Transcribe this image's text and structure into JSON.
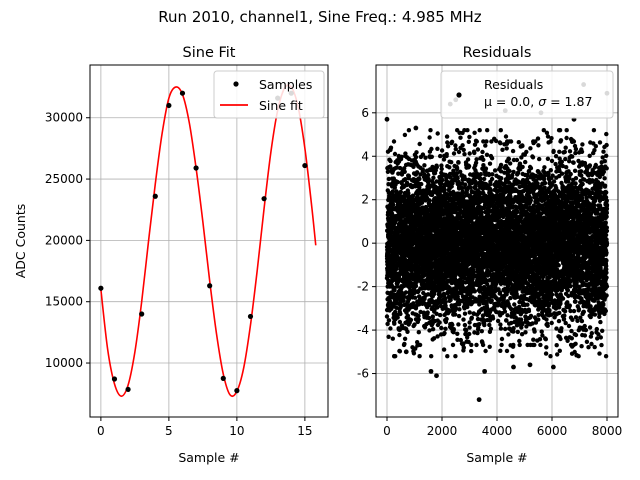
{
  "figure": {
    "suptitle": "Run 2010, channel1, Sine Freq.: 4.985 MHz"
  },
  "chart_data": [
    {
      "type": "line",
      "title": "Sine Fit",
      "xlabel": "Sample #",
      "ylabel": "ADC Counts",
      "xlim": [
        -0.8,
        16.7
      ],
      "ylim": [
        5600,
        34300
      ],
      "xticks": [
        0,
        5,
        10,
        15
      ],
      "yticks": [
        10000,
        15000,
        20000,
        25000,
        30000
      ],
      "grid": true,
      "legend_position": "upper-right",
      "series": [
        {
          "name": "Samples",
          "kind": "scatter",
          "color": "#000000",
          "x": [
            0,
            1,
            2,
            3,
            4,
            5,
            6,
            7,
            8,
            9,
            10,
            11,
            12,
            13,
            14,
            15
          ],
          "y": [
            16100,
            8700,
            7850,
            14000,
            23600,
            31000,
            32000,
            25900,
            16300,
            8750,
            7750,
            13800,
            23400,
            31600,
            32000,
            26100
          ]
        },
        {
          "name": "Sine fit",
          "kind": "line",
          "color": "#ff0000",
          "x": [
            0,
            0.5,
            1,
            1.5,
            2,
            2.5,
            3,
            3.5,
            4,
            4.5,
            5,
            5.5,
            6,
            6.5,
            7,
            7.5,
            8,
            8.5,
            9,
            9.5,
            10,
            10.5,
            11,
            11.5,
            12,
            12.5,
            13,
            13.5,
            14,
            14.5,
            15,
            15.5,
            15.8
          ],
          "y": [
            16000,
            11100,
            8300,
            7300,
            8200,
            10900,
            15000,
            19900,
            24600,
            28700,
            31600,
            32500,
            31900,
            29600,
            25900,
            21500,
            16700,
            12400,
            9100,
            7400,
            7700,
            9600,
            13100,
            17600,
            22600,
            27200,
            30600,
            32400,
            32500,
            30900,
            27500,
            22800,
            19600
          ]
        }
      ]
    },
    {
      "type": "scatter",
      "title": "Residuals",
      "xlabel": "Sample #",
      "ylim": [
        -8,
        8.2
      ],
      "xlim": [
        -400,
        8400
      ],
      "xticks": [
        0,
        2000,
        4000,
        6000,
        8000
      ],
      "yticks": [
        -6,
        -4,
        -2,
        0,
        2,
        4,
        6
      ],
      "grid": true,
      "legend_position": "upper-right",
      "residual_stats": {
        "mean": 0.0,
        "sigma": 1.87,
        "n_points": 8000
      },
      "series": [
        {
          "name": "Residuals",
          "color": "#000000",
          "legend_label_line1": "Residuals",
          "legend_label_line2_prefix": "μ = 0.0, ",
          "legend_label_sigma_symbol": "σ",
          "legend_label_line2_suffix": " = 1.87",
          "outliers": [
            {
              "x": 0,
              "y": 5.7
            },
            {
              "x": 120,
              "y": 4.3
            },
            {
              "x": 3350,
              "y": -7.2
            },
            {
              "x": 7150,
              "y": 7.3
            },
            {
              "x": 6050,
              "y": -5.7
            },
            {
              "x": 1800,
              "y": -6.1
            },
            {
              "x": 3550,
              "y": -5.9
            },
            {
              "x": 2300,
              "y": 6.4
            },
            {
              "x": 4600,
              "y": -5.7
            },
            {
              "x": 5600,
              "y": 6.0
            },
            {
              "x": 2500,
              "y": 6.6
            },
            {
              "x": 1050,
              "y": 5.3
            },
            {
              "x": 8000,
              "y": 6.9
            },
            {
              "x": 5200,
              "y": -5.6
            },
            {
              "x": 4300,
              "y": 6.1
            },
            {
              "x": 700,
              "y": -5.0
            },
            {
              "x": 1600,
              "y": -5.9
            },
            {
              "x": 6800,
              "y": 5.7
            }
          ]
        }
      ]
    }
  ]
}
